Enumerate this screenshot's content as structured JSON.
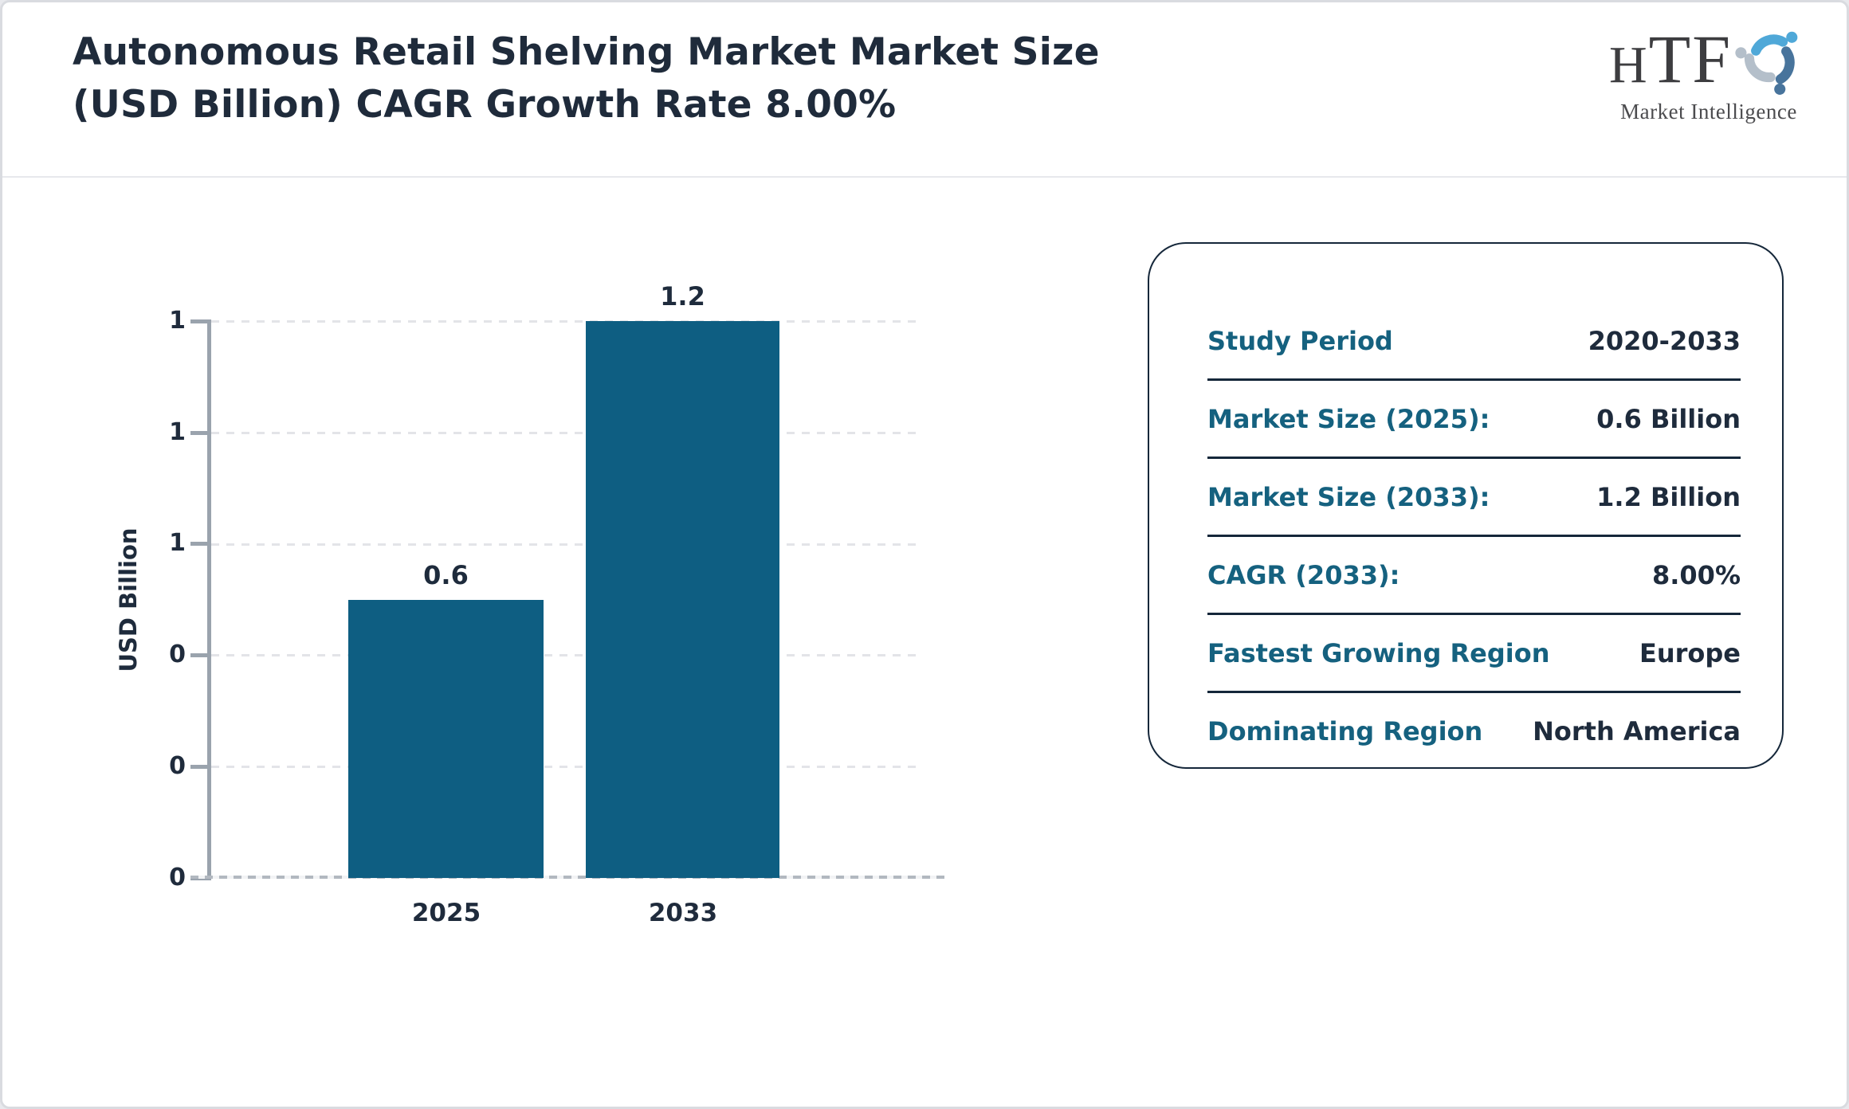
{
  "header": {
    "title_line1": "Autonomous Retail Shelving Market Market Size",
    "title_line2": "(USD Billion) CAGR Growth Rate 8.00%",
    "logo": {
      "text_h": "H",
      "text_tf": "TF",
      "subtext": "Market Intelligence",
      "mark_colors": {
        "light_blue": "#4fa8d8",
        "steel_blue": "#48749c",
        "gray_blue": "#b4bfca"
      }
    }
  },
  "chart_data": {
    "type": "bar",
    "title": "Autonomous Retail Shelving Market Market Size (USD Billion) CAGR Growth Rate 8.00%",
    "categories": [
      "2025",
      "2033"
    ],
    "values": [
      0.6,
      1.2
    ],
    "bar_labels": [
      "0.6",
      "1.2"
    ],
    "series_name": "Market Size",
    "xlabel": "",
    "ylabel": "USD Billion",
    "ylim": [
      0,
      1.2
    ],
    "ytick_labels_top_to_bottom": [
      "1",
      "1",
      "1",
      "0",
      "0",
      "0"
    ],
    "grid": "horizontal dashed, on",
    "legend": "none",
    "bar_color": "#0e5e82"
  },
  "panel": {
    "rows": [
      {
        "label": "Study Period",
        "value": "2020-2033"
      },
      {
        "label": "Market Size (2025):",
        "value": "0.6 Billion"
      },
      {
        "label": "Market Size (2033):",
        "value": "1.2 Billion"
      },
      {
        "label": "CAGR (2033):",
        "value": "8.00%"
      },
      {
        "label": "Fastest Growing Region",
        "value": "Europe"
      },
      {
        "label": "Dominating Region",
        "value": "North America"
      }
    ]
  },
  "colors": {
    "bar": "#0e5e82",
    "panel_label": "#15617f",
    "dark_text": "#1e2b3c",
    "axis_gray": "#9aa3ad",
    "gridline": "#e3e4e8",
    "panel_border": "#15273a"
  }
}
